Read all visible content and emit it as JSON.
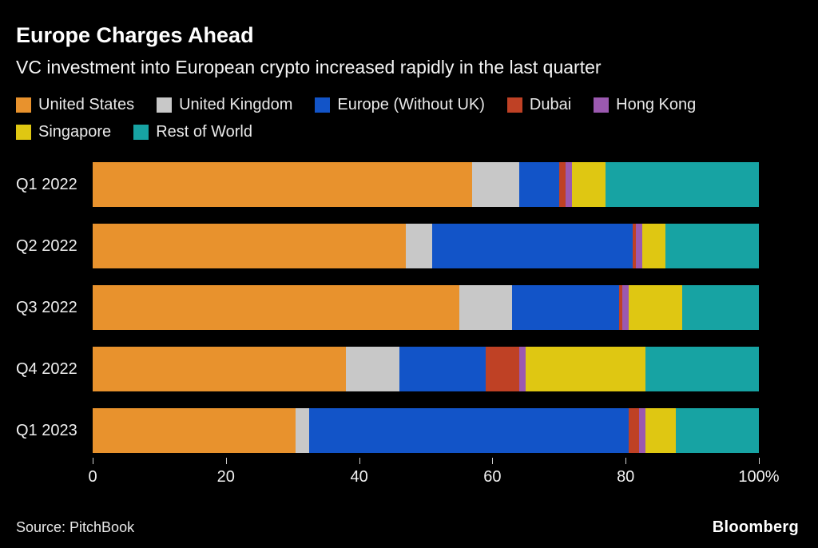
{
  "header": {
    "title": "Europe Charges Ahead",
    "subtitle": "VC investment into European crypto increased rapidly in the last quarter"
  },
  "footer": {
    "source": "Source: PitchBook",
    "brand": "Bloomberg"
  },
  "chart_data": {
    "type": "bar",
    "orientation": "horizontal",
    "stacked": true,
    "unit": "%",
    "title": "Europe Charges Ahead",
    "subtitle": "VC investment into European crypto increased rapidly in the last quarter",
    "categories": [
      "Q1 2022",
      "Q2 2022",
      "Q3 2022",
      "Q4 2022",
      "Q1 2023"
    ],
    "series": [
      {
        "name": "United States",
        "color": "#E8922D",
        "values": [
          57,
          47,
          55,
          38,
          30.5
        ]
      },
      {
        "name": "United Kingdom",
        "color": "#C8C8C8",
        "values": [
          7,
          4,
          8,
          8,
          2
        ]
      },
      {
        "name": "Europe (Without UK)",
        "color": "#1254C8",
        "values": [
          6,
          30,
          16,
          13,
          48
        ]
      },
      {
        "name": "Dubai",
        "color": "#BF4125",
        "values": [
          1,
          0.5,
          0.5,
          5,
          1.5
        ]
      },
      {
        "name": "Hong Kong",
        "color": "#9B59B0",
        "values": [
          1,
          1,
          1,
          1,
          1
        ]
      },
      {
        "name": "Singapore",
        "color": "#DFC712",
        "values": [
          5,
          3.5,
          8,
          18,
          4.5
        ]
      },
      {
        "name": "Rest of World",
        "color": "#17A3A3",
        "values": [
          23,
          14,
          11.5,
          17,
          12.5
        ]
      }
    ],
    "xlabel": "",
    "ylabel": "",
    "xlim": [
      0,
      100
    ],
    "x_ticks": [
      "0",
      "20",
      "40",
      "60",
      "80",
      "100%"
    ],
    "legend_position": "top",
    "grid": false,
    "background": "#000000"
  }
}
